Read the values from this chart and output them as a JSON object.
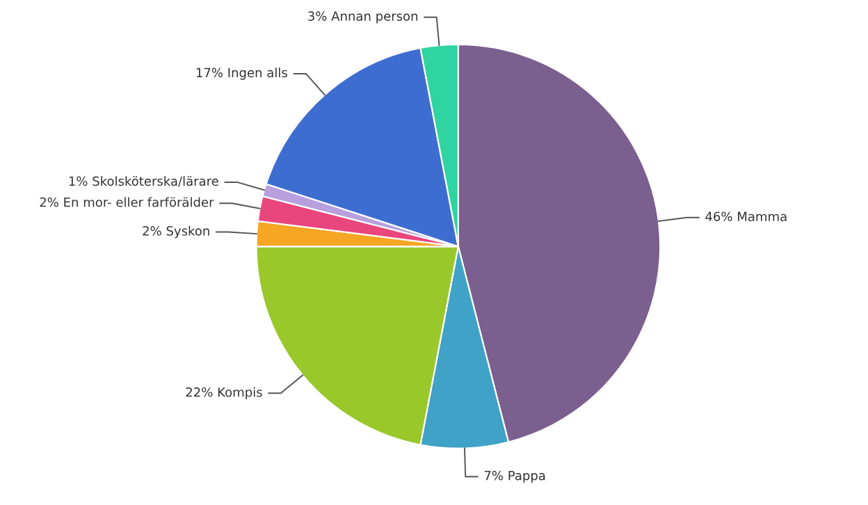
{
  "chart_data": {
    "type": "pie",
    "categories": [
      "Mamma",
      "Pappa",
      "Kompis",
      "Syskon",
      "En mor- eller farförälder",
      "Skolsköterska/lärare",
      "Ingen alls",
      "Annan person"
    ],
    "values": [
      46,
      7,
      22,
      2,
      2,
      1,
      17,
      3
    ],
    "value_labels": [
      "46%",
      "7%",
      "22%",
      "2%",
      "2%",
      "1%",
      "17%",
      "3%"
    ],
    "colors": [
      "#7b5f8f",
      "#3fa2c6",
      "#98c82a",
      "#f5a623",
      "#e9467d",
      "#b7a0dd",
      "#3e6dd2",
      "#2fd4a1"
    ],
    "legend": false
  }
}
